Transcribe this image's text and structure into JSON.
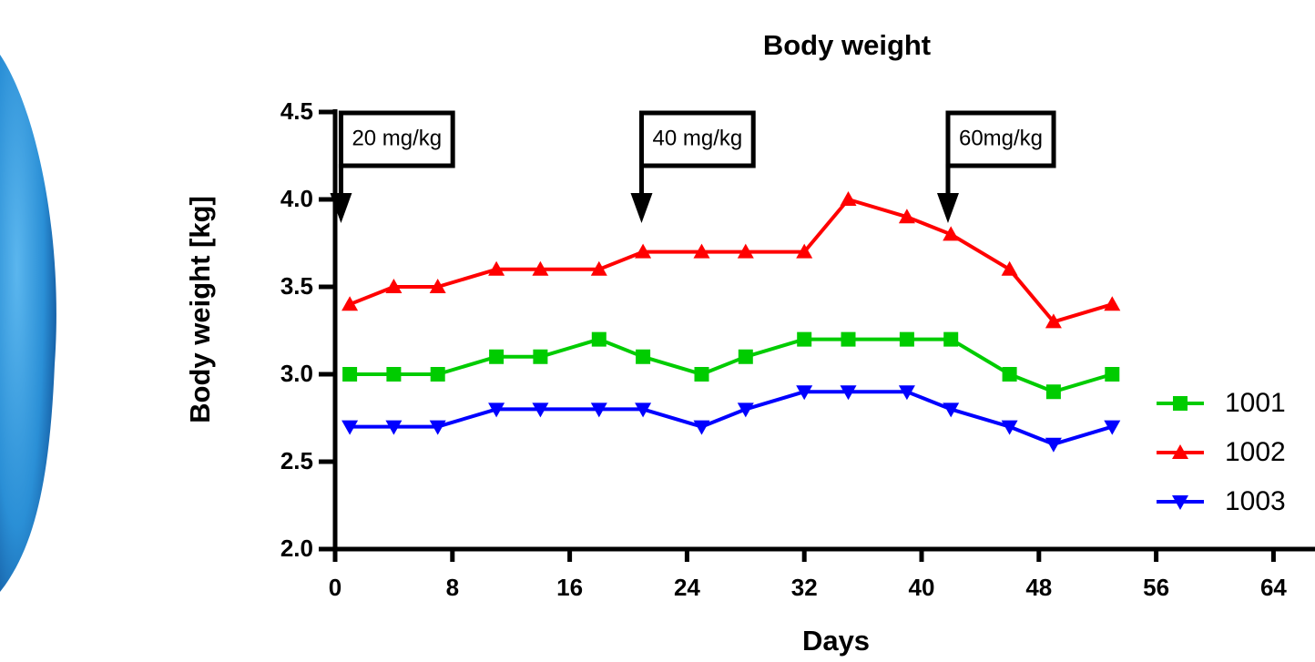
{
  "chart_data": {
    "type": "line",
    "title": "Body weight",
    "x_label": "Days",
    "y_label": "Body weight [kg]",
    "x": [
      1,
      4,
      7,
      11,
      14,
      18,
      21,
      25,
      28,
      32,
      35,
      39,
      42,
      46,
      49,
      53
    ],
    "series": [
      {
        "name": "1001",
        "color": "#00cc00",
        "marker": "square",
        "values": [
          3.0,
          3.0,
          3.0,
          3.1,
          3.1,
          3.2,
          3.1,
          3.0,
          3.1,
          3.2,
          3.2,
          3.2,
          3.2,
          3.0,
          2.9,
          3.0
        ]
      },
      {
        "name": "1002",
        "color": "#ff0000",
        "marker": "triangle-up",
        "values": [
          3.4,
          3.5,
          3.5,
          3.6,
          3.6,
          3.6,
          3.7,
          3.7,
          3.7,
          3.7,
          4.0,
          3.9,
          3.8,
          3.6,
          3.3,
          3.4
        ]
      },
      {
        "name": "1003",
        "color": "#0000ff",
        "marker": "triangle-down",
        "values": [
          2.7,
          2.7,
          2.7,
          2.8,
          2.8,
          2.8,
          2.8,
          2.7,
          2.8,
          2.9,
          2.9,
          2.9,
          2.8,
          2.7,
          2.6,
          2.7
        ]
      }
    ],
    "xlim": [
      0,
      67
    ],
    "xticks": [
      0,
      8,
      16,
      24,
      32,
      40,
      48,
      56,
      64
    ],
    "ylim": [
      2.0,
      4.5
    ],
    "yticks": [
      {
        "value": 2.0,
        "label": "2.0"
      },
      2.5,
      {
        "value": 3.0,
        "label": "3.0"
      },
      3.5,
      {
        "value": 4.0,
        "label": "4.0"
      },
      4.5
    ],
    "annotations": [
      {
        "text": "20 mg/kg",
        "x": 0.4
      },
      {
        "text": "40 mg/kg",
        "x": 20.9
      },
      {
        "text": "60mg/kg",
        "x": 41.8
      }
    ],
    "legend": "right"
  }
}
